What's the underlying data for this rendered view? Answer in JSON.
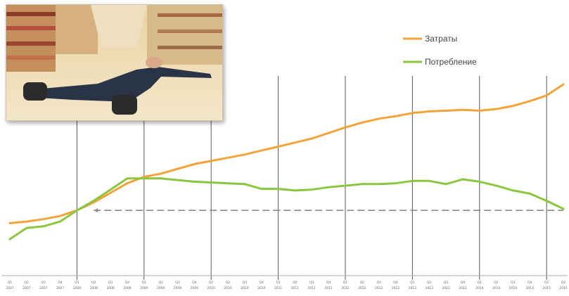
{
  "chart_data": {
    "type": "line",
    "title": "",
    "xlabel": "",
    "ylabel": "",
    "legend_position": "top-right",
    "grid": false,
    "x": [
      "Q1 2007",
      "Q2 2007",
      "Q3 2007",
      "Q4 2007",
      "Q1 2008",
      "Q2 2008",
      "Q3 2008",
      "Q4 2008",
      "Q1 2009",
      "Q2 2009",
      "Q3 2009",
      "Q4 2009",
      "Q1 2010",
      "Q2 2010",
      "Q3 2010",
      "Q4 2010",
      "Q1 2011",
      "Q2 2011",
      "Q3 2011",
      "Q4 2011",
      "Q1 2012",
      "Q2 2012",
      "Q3 2012",
      "Q4 2012",
      "Q1 2013",
      "Q2 2013",
      "Q3 2013",
      "Q4 2013",
      "Q1 2014",
      "Q2 2014",
      "Q3 2014",
      "Q4 2014",
      "Q1 2015",
      "Q2 2015"
    ],
    "tick_labels": [
      "Q1",
      "Q2",
      "Q3",
      "Q4",
      "Q1",
      "Q2",
      "Q3",
      "Q4",
      "Q1",
      "Q2",
      "Q3",
      "Q4",
      "Q1",
      "Q2",
      "Q3",
      "Q4",
      "Q1",
      "Q2",
      "Q3",
      "Q4",
      "Q1",
      "Q2",
      "Q3",
      "Q4",
      "Q1",
      "Q2",
      "Q3",
      "Q4",
      "Q1",
      "Q2",
      "Q3",
      "Q4",
      "Q1",
      "Q2"
    ],
    "vertical_markers": [
      "Q1 2008",
      "Q1 2009",
      "Q1 2010",
      "Q1 2011",
      "Q1 2012",
      "Q1 2013",
      "Q1 2014",
      "Q1 2015"
    ],
    "baseline_reference": {
      "style": "dashed",
      "color": "#8a8a8a",
      "from": "Q2 2008",
      "to": "Q2 2015",
      "value": 100
    },
    "series": [
      {
        "name": "Затраты",
        "color": "#f2a33a",
        "values": [
          92,
          93,
          94.5,
          96.5,
          100,
          105,
          111,
          117,
          121,
          123,
          126,
          129,
          131,
          133,
          135,
          137.5,
          140,
          142.5,
          145,
          148.5,
          152,
          155,
          157.5,
          159,
          161,
          162,
          162.5,
          163,
          162.5,
          163.5,
          165.5,
          168.5,
          172,
          179
        ]
      },
      {
        "name": "Потребление",
        "color": "#8cc63f",
        "values": [
          82,
          89,
          90,
          93,
          100,
          106,
          113,
          120,
          120,
          120,
          119,
          118,
          117.5,
          117,
          116.5,
          113.5,
          113.5,
          112.5,
          113,
          114.5,
          115.5,
          116.5,
          116.5,
          117,
          118.5,
          118.5,
          116.5,
          119.5,
          118,
          115.5,
          112.5,
          110.5,
          106,
          101
        ]
      }
    ],
    "ylim": [
      60,
      190
    ]
  },
  "photo": {
    "subject": "photo"
  }
}
